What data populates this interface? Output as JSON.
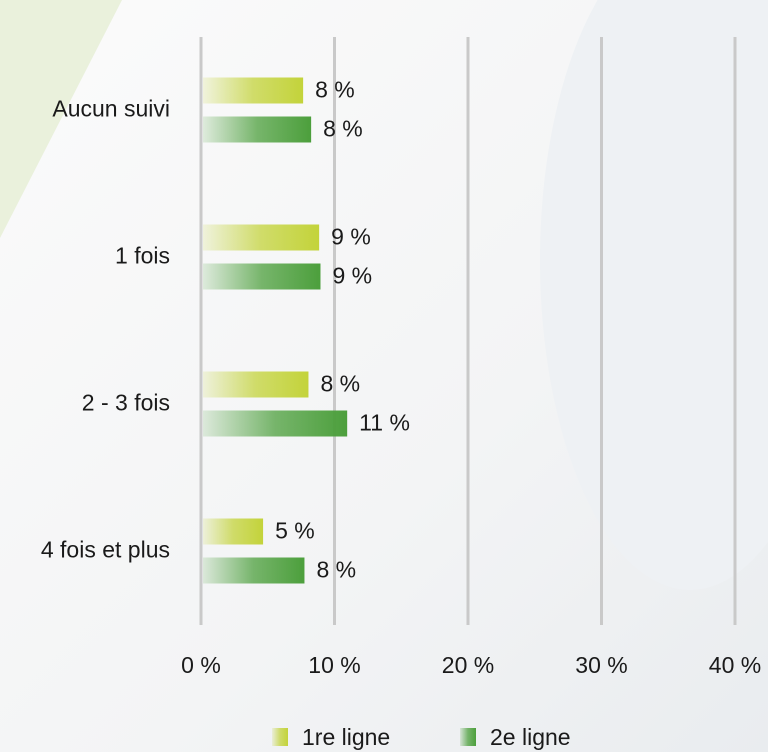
{
  "chart_data": {
    "type": "hbar",
    "categories": [
      "Aucun suivi",
      "1 fois",
      "2 - 3 fois",
      "4 fois et plus"
    ],
    "series": [
      {
        "name": "1re ligne",
        "color": "#c3d33a",
        "values": [
          7.5,
          8.7,
          7.9,
          4.5
        ],
        "value_labels": [
          "8 %",
          "9 %",
          "8 %",
          "5 %"
        ]
      },
      {
        "name": "2e ligne",
        "color": "#4c9f3c",
        "values": [
          8.1,
          8.8,
          10.8,
          7.6
        ],
        "value_labels": [
          "8 %",
          "9 %",
          "11 %",
          "8 %"
        ]
      }
    ],
    "xlim": [
      0,
      40
    ],
    "xticks": [
      {
        "value": 0,
        "label": "0 %"
      },
      {
        "value": 10,
        "label": "10 %"
      },
      {
        "value": 20,
        "label": "20 %"
      },
      {
        "value": 30,
        "label": "30 %"
      },
      {
        "value": 40,
        "label": "40 %"
      }
    ],
    "grid": true,
    "legend": "bottom"
  }
}
